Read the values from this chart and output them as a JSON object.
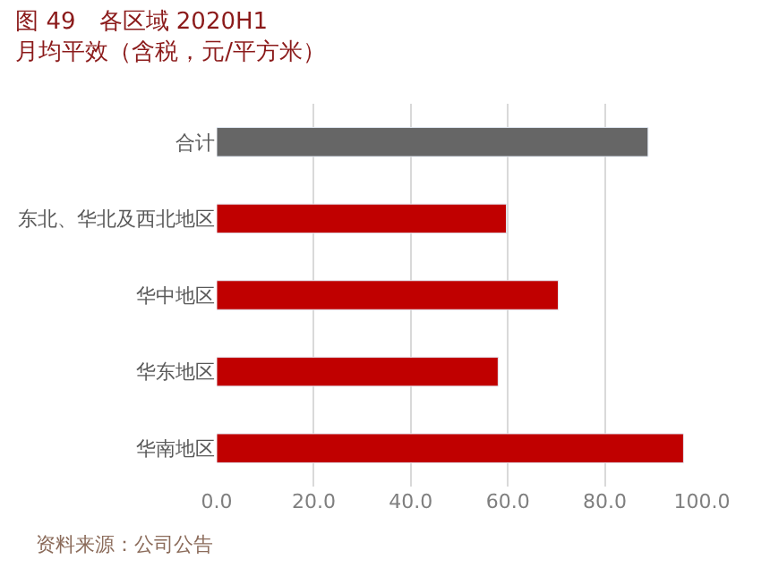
{
  "chart_data": {
    "type": "bar",
    "orientation": "horizontal",
    "title": "图 49　各区域 2020H1 月均平效（含税，元/平方米）",
    "categories": [
      "合计",
      "东北、华北及西北地区",
      "华中地区",
      "华东地区",
      "华南地区"
    ],
    "values": [
      88.9,
      59.7,
      70.4,
      58.0,
      96.2
    ],
    "colors": [
      "#666666",
      "#c00000",
      "#c00000",
      "#c00000",
      "#c00000"
    ],
    "xlim": [
      0,
      100
    ],
    "xticks": [
      {
        "value": 0,
        "label": "0.0"
      },
      {
        "value": 20,
        "label": "20.0"
      },
      {
        "value": 40,
        "label": "40.0"
      },
      {
        "value": 60,
        "label": "60.0"
      },
      {
        "value": 80,
        "label": "80.0"
      },
      {
        "value": 100,
        "label": "100.0"
      }
    ],
    "grid": "x",
    "annotations": [
      "资料来源：公司公告"
    ]
  }
}
